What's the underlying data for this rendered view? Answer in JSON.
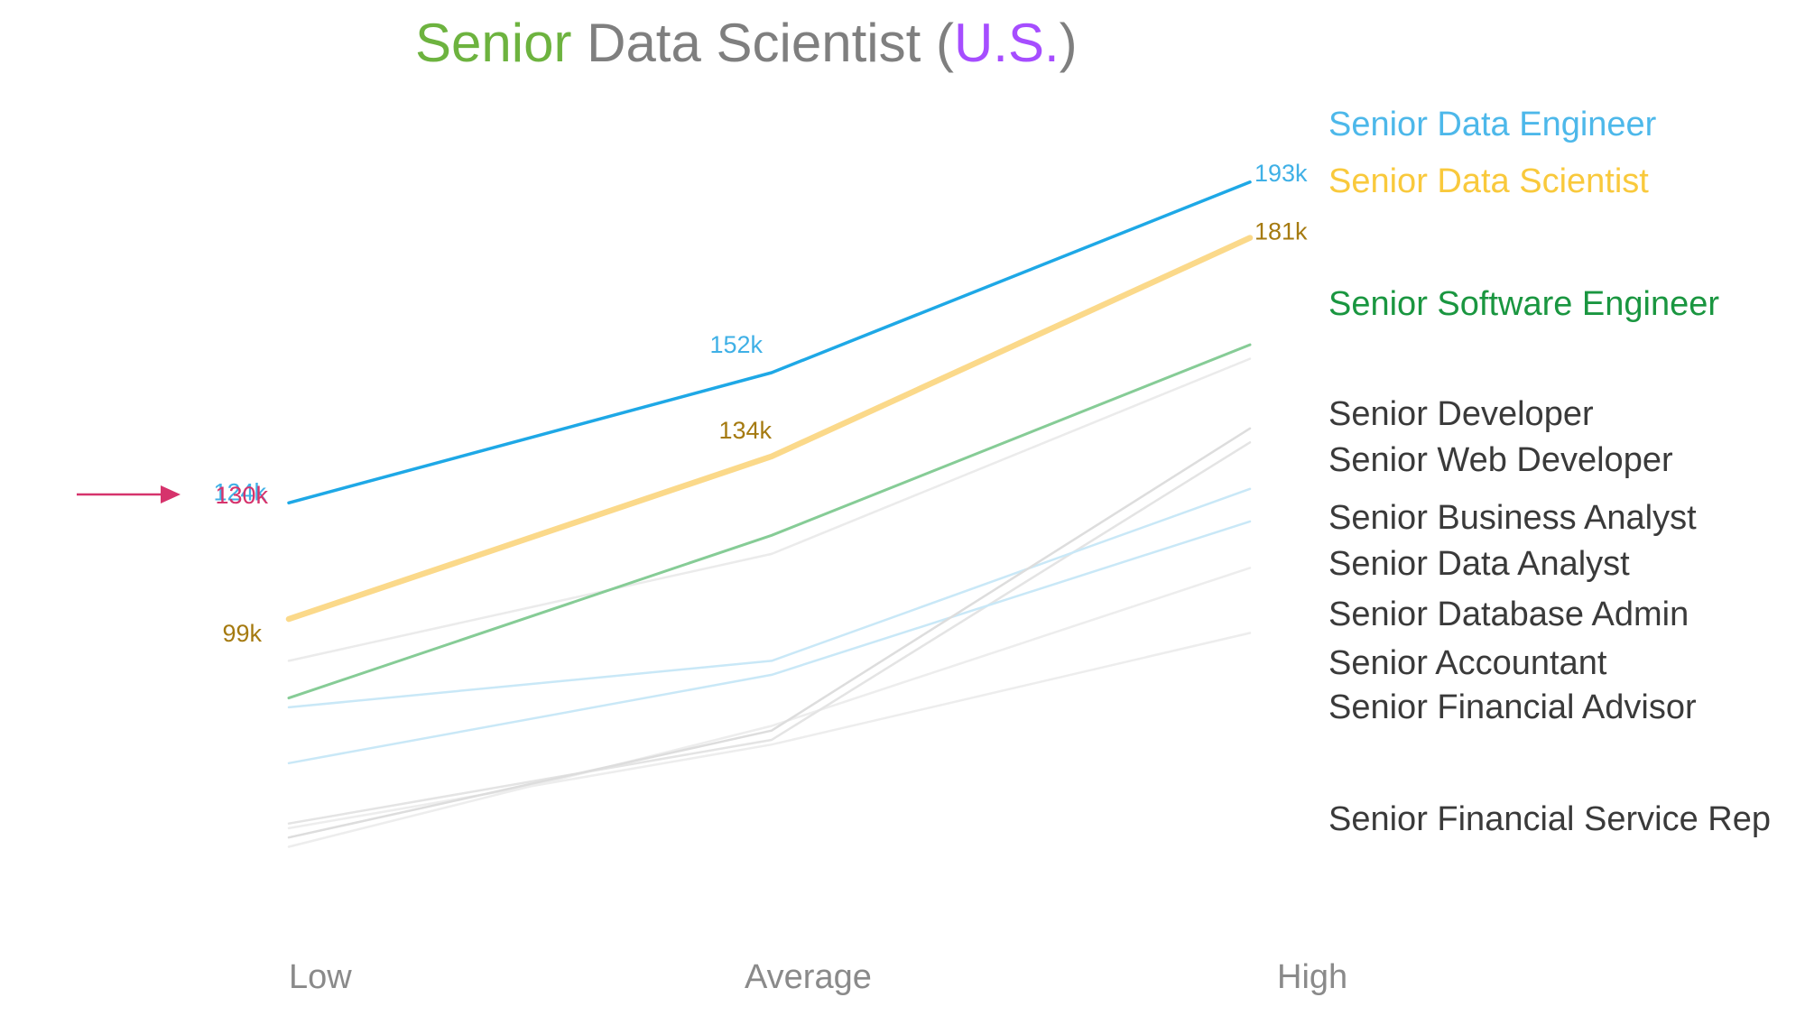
{
  "chart_data": {
    "type": "line",
    "title_parts": [
      {
        "text": "Senior",
        "color": "#6db33f"
      },
      {
        "text": " Data Scientist (",
        "color": "#7f7f7f"
      },
      {
        "text": "U.S.",
        "color": "#a64dff"
      },
      {
        "text": ")",
        "color": "#7f7f7f"
      }
    ],
    "categories": [
      "Low",
      "Average",
      "High"
    ],
    "ylim": [
      40,
      205
    ],
    "series": [
      {
        "name": "Senior Data Engineer",
        "values": [
          124,
          152,
          193
        ],
        "color": "#1ea8e6",
        "label_color": "#4db8ea",
        "width": 3.5,
        "opacity": 1,
        "value_labels": [
          "124k",
          "152k",
          "193k"
        ],
        "value_label_color": "#3fb0e6"
      },
      {
        "name": "Senior Data Scientist",
        "values": [
          99,
          134,
          181
        ],
        "color": "#fbd98a",
        "label_color": "#f9c93c",
        "width": 6.5,
        "opacity": 1,
        "value_labels": [
          "99k",
          "134k",
          "181k"
        ],
        "value_label_color": "#a57a10"
      },
      {
        "name": "Senior Software Engineer",
        "values": [
          82,
          117,
          158
        ],
        "color": "#86cc96",
        "label_color": "#1a9640",
        "width": 3,
        "opacity": 1
      },
      {
        "name": "Senior Developer",
        "values": [
          90,
          113,
          155
        ],
        "color": "#ebebeb",
        "label_color": "#3a3a3a",
        "width": 2.5,
        "opacity": 1
      },
      {
        "name": "Senior Web Developer",
        "values": [
          52,
          75,
          140
        ],
        "color": "#dddddd",
        "label_color": "#3a3a3a",
        "width": 2.5,
        "opacity": 1
      },
      {
        "name": "Senior Business Analyst",
        "values": [
          80,
          90,
          127
        ],
        "color": "#c9e8f7",
        "label_color": "#3a3a3a",
        "width": 2.5,
        "opacity": 1
      },
      {
        "name": "Senior Data Analyst",
        "values": [
          68,
          87,
          120
        ],
        "color": "#c9e8f7",
        "label_color": "#3a3a3a",
        "width": 2.5,
        "opacity": 1
      },
      {
        "name": "Senior Database Admin",
        "values": [
          55,
          73,
          137
        ],
        "color": "#e4e4e4",
        "label_color": "#3a3a3a",
        "width": 2.5,
        "opacity": 1
      },
      {
        "name": "Senior Accountant",
        "values": [
          50,
          76,
          110
        ],
        "color": "#ededed",
        "label_color": "#3a3a3a",
        "width": 2.5,
        "opacity": 1
      },
      {
        "name": "Senior Financial Advisor",
        "values": [
          54,
          72,
          96
        ],
        "color": "#ededed",
        "label_color": "#3a3a3a",
        "width": 2.5,
        "opacity": 1
      },
      {
        "name": "Senior Financial Service Rep",
        "values": [
          54,
          72,
          96
        ],
        "color": "#f0f0f0",
        "label_color": "#3a3a3a",
        "width": 2.5,
        "opacity": 0
      }
    ],
    "marker": {
      "label": "130k",
      "value": 130,
      "color": "#d6336c"
    },
    "grid": false,
    "legend": "right-inline"
  }
}
